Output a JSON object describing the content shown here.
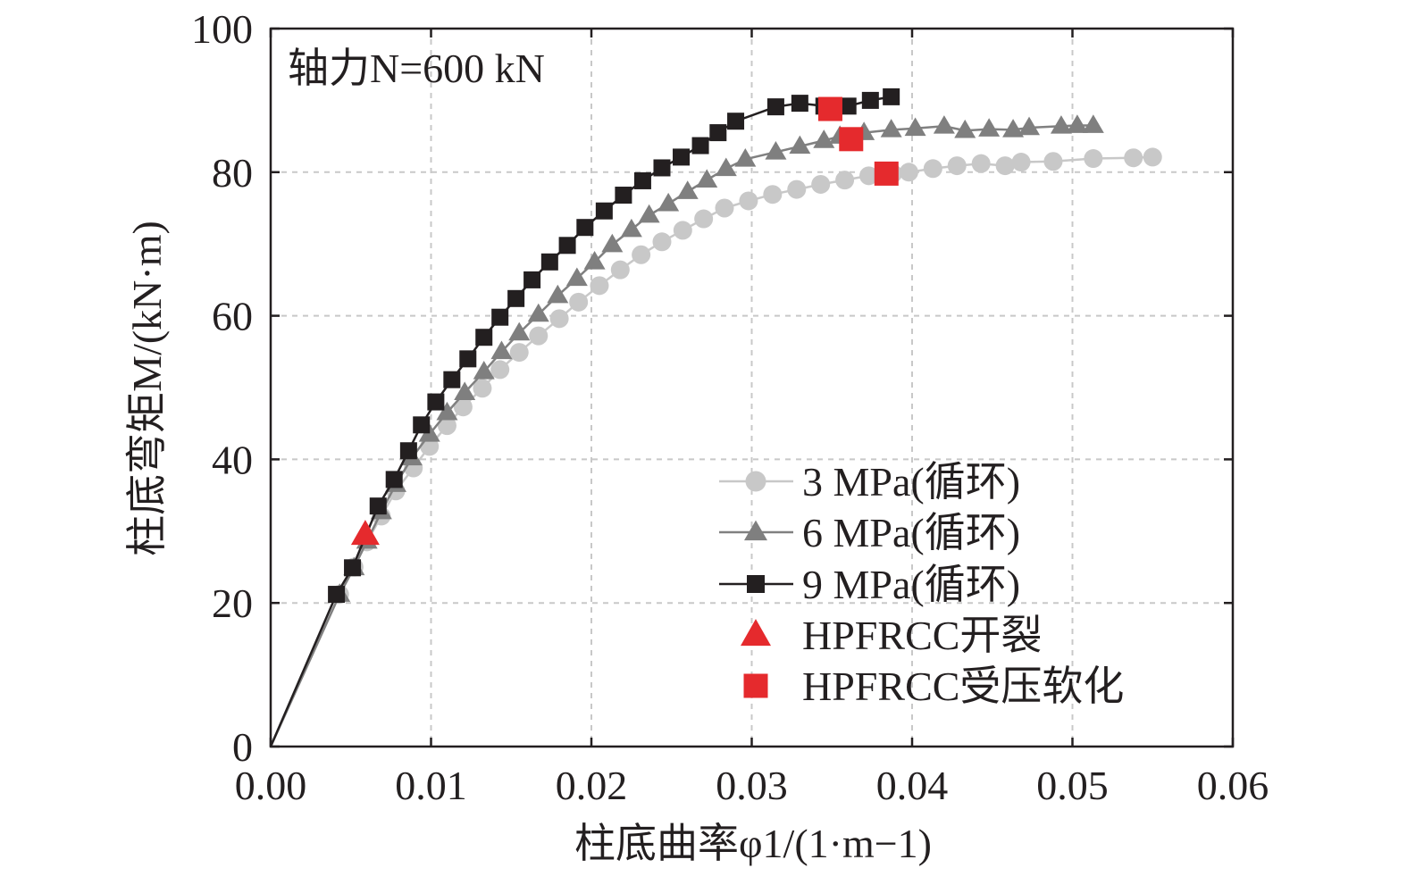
{
  "chart_data": {
    "type": "line",
    "annotation": "轴力N=600 kN",
    "xlabel": "柱底曲率φ1/(1·m−1)",
    "ylabel": "柱底弯矩M/(kN·m)",
    "xlim": [
      0,
      0.06
    ],
    "ylim": [
      0,
      100
    ],
    "xticks": [
      "0.00",
      "0.01",
      "0.02",
      "0.03",
      "0.04",
      "0.05",
      "0.06"
    ],
    "yticks": [
      "0",
      "20",
      "40",
      "60",
      "80",
      "100"
    ],
    "xtick_values": [
      0,
      0.01,
      0.02,
      0.03,
      0.04,
      0.05,
      0.06
    ],
    "ytick_values": [
      0,
      20,
      40,
      60,
      80,
      100
    ],
    "grid": true,
    "legend_position": "bottom-right",
    "series": [
      {
        "name": "3 MPa(循环)",
        "marker": "circle",
        "color": "#c8c8c8",
        "line_color": "#c8c8c8",
        "points": [
          [
            0,
            0
          ],
          [
            0.0043,
            21.2
          ],
          [
            0.0052,
            25.0
          ],
          [
            0.006,
            28.5
          ],
          [
            0.0069,
            32.1
          ],
          [
            0.0078,
            35.6
          ],
          [
            0.0089,
            38.8
          ],
          [
            0.0099,
            41.8
          ],
          [
            0.011,
            44.7
          ],
          [
            0.012,
            47.3
          ],
          [
            0.0132,
            49.9
          ],
          [
            0.0143,
            52.5
          ],
          [
            0.0155,
            54.9
          ],
          [
            0.0167,
            57.2
          ],
          [
            0.018,
            59.6
          ],
          [
            0.0192,
            61.9
          ],
          [
            0.0205,
            64.2
          ],
          [
            0.0218,
            66.4
          ],
          [
            0.0231,
            68.5
          ],
          [
            0.0244,
            70.3
          ],
          [
            0.0257,
            71.9
          ],
          [
            0.027,
            73.5
          ],
          [
            0.0283,
            75.0
          ],
          [
            0.0298,
            76.0
          ],
          [
            0.0313,
            76.9
          ],
          [
            0.0328,
            77.6
          ],
          [
            0.0343,
            78.3
          ],
          [
            0.0358,
            78.9
          ],
          [
            0.0373,
            79.5
          ],
          [
            0.0388,
            79.8
          ],
          [
            0.0398,
            80.0
          ],
          [
            0.0413,
            80.5
          ],
          [
            0.0428,
            80.9
          ],
          [
            0.0443,
            81.2
          ],
          [
            0.0458,
            80.9
          ],
          [
            0.0468,
            81.4
          ],
          [
            0.0488,
            81.5
          ],
          [
            0.0513,
            81.9
          ],
          [
            0.0538,
            82.0
          ],
          [
            0.055,
            82.1
          ]
        ]
      },
      {
        "name": "6 MPa(循环)",
        "marker": "triangle",
        "color": "#7f7f7f",
        "line_color": "#808080",
        "points": [
          [
            0,
            0
          ],
          [
            0.0043,
            21.2
          ],
          [
            0.0052,
            24.9
          ],
          [
            0.006,
            28.6
          ],
          [
            0.0069,
            32.7
          ],
          [
            0.0078,
            36.5
          ],
          [
            0.0088,
            40.2
          ],
          [
            0.0099,
            43.5
          ],
          [
            0.011,
            46.5
          ],
          [
            0.0121,
            49.3
          ],
          [
            0.0133,
            52.2
          ],
          [
            0.0144,
            55.0
          ],
          [
            0.0155,
            57.6
          ],
          [
            0.0167,
            60.2
          ],
          [
            0.0179,
            62.8
          ],
          [
            0.0191,
            65.2
          ],
          [
            0.0202,
            67.5
          ],
          [
            0.0213,
            69.9
          ],
          [
            0.0225,
            72.0
          ],
          [
            0.0236,
            74.0
          ],
          [
            0.0248,
            75.6
          ],
          [
            0.026,
            77.3
          ],
          [
            0.0272,
            78.9
          ],
          [
            0.0284,
            80.5
          ],
          [
            0.0296,
            81.8
          ],
          [
            0.0315,
            82.8
          ],
          [
            0.033,
            83.6
          ],
          [
            0.0345,
            84.4
          ],
          [
            0.0355,
            85.0
          ],
          [
            0.037,
            85.5
          ],
          [
            0.0387,
            85.9
          ],
          [
            0.0402,
            86.1
          ],
          [
            0.042,
            86.4
          ],
          [
            0.0433,
            85.8
          ],
          [
            0.0448,
            86.0
          ],
          [
            0.0463,
            85.9
          ],
          [
            0.0473,
            86.2
          ],
          [
            0.0493,
            86.4
          ],
          [
            0.0503,
            86.5
          ],
          [
            0.0513,
            86.5
          ]
        ]
      },
      {
        "name": "9 MPa(循环)",
        "marker": "square",
        "color": "#231f20",
        "line_color": "#231f20",
        "points": [
          [
            0,
            0
          ],
          [
            0.0041,
            21.2
          ],
          [
            0.0051,
            24.9
          ],
          [
            0.0067,
            33.5
          ],
          [
            0.0077,
            37.2
          ],
          [
            0.0086,
            41.2
          ],
          [
            0.0094,
            44.8
          ],
          [
            0.0103,
            48.0
          ],
          [
            0.0113,
            51.1
          ],
          [
            0.0123,
            54.0
          ],
          [
            0.0133,
            57.0
          ],
          [
            0.0143,
            59.8
          ],
          [
            0.0153,
            62.4
          ],
          [
            0.0163,
            65.0
          ],
          [
            0.0174,
            67.5
          ],
          [
            0.0185,
            69.8
          ],
          [
            0.0196,
            72.3
          ],
          [
            0.0208,
            74.6
          ],
          [
            0.022,
            76.8
          ],
          [
            0.0232,
            78.8
          ],
          [
            0.0244,
            80.6
          ],
          [
            0.0256,
            82.1
          ],
          [
            0.0268,
            83.7
          ],
          [
            0.0279,
            85.5
          ],
          [
            0.029,
            87.1
          ],
          [
            0.0315,
            89.1
          ],
          [
            0.033,
            89.6
          ],
          [
            0.0345,
            89.2
          ],
          [
            0.036,
            89.2
          ],
          [
            0.0374,
            90.0
          ],
          [
            0.0387,
            90.5
          ]
        ]
      }
    ],
    "markers": [
      {
        "name": "HPFRCC开裂",
        "marker": "triangle",
        "color": "#e52a2d",
        "points": [
          [
            0.0059,
            29.5
          ]
        ]
      },
      {
        "name": "HPFRCC受压软化",
        "marker": "square",
        "color": "#e52a2d",
        "points": [
          [
            0.0349,
            88.8
          ],
          [
            0.0362,
            84.6
          ],
          [
            0.0384,
            79.8
          ]
        ]
      }
    ]
  }
}
